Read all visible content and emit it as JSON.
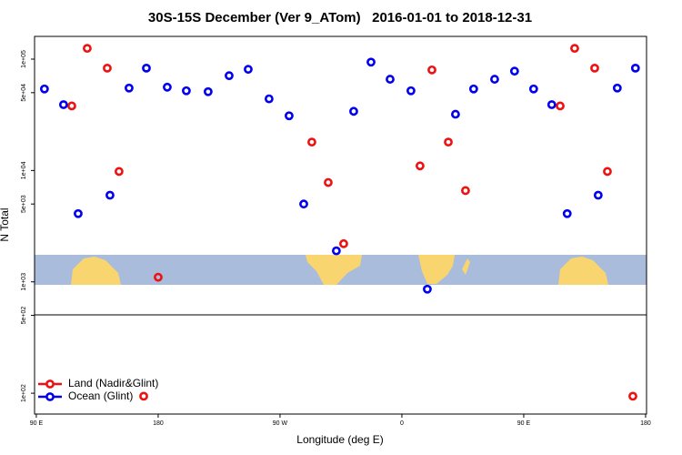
{
  "chart_data": {
    "type": "scatter",
    "title": "30S-15S December (Ver 9_ATom)   2016-01-01 to 2018-12-31",
    "x_label": "Longitude (deg E)",
    "y_label": "N Total",
    "log_y": true,
    "legend": "bottom-left",
    "xlim": [
      88.7,
      540.7
    ],
    "xticks": [
      {
        "value": 90,
        "label": "90 E"
      },
      180,
      {
        "value": 270,
        "label": "90 W"
      },
      0,
      {
        "value": 450,
        "label": "90 E"
      },
      {
        "value": 540,
        "label": "180"
      }
    ],
    "ylim": [
      65,
      160000
    ],
    "yticks": [
      {
        "value": 100,
        "label": "1e+02"
      },
      {
        "value": 500,
        "label": "5e+02"
      },
      {
        "value": 1000,
        "label": "1e+03"
      },
      {
        "value": 5000,
        "label": "5e+03"
      },
      {
        "value": 10000,
        "label": "1e+04"
      },
      {
        "value": 50000,
        "label": "5e+04"
      },
      {
        "value": 100000,
        "label": "1e+05"
      }
    ],
    "series": [
      {
        "name": "Land (Nadir&Glint)",
        "color": "#ee1111",
        "x": [
          127.6,
          116.2,
          142.4,
          151.1,
          169.3,
          180,
          293.5,
          305.6,
          317,
          373.4,
          382.2,
          394.3,
          407,
          476.9,
          487.6,
          502.4,
          511.8,
          530.6
        ],
        "values": [
          125000,
          38000,
          83000,
          9800,
          94,
          1100,
          18000,
          7800,
          2200,
          11000,
          80000,
          18000,
          6600,
          38000,
          125000,
          83000,
          9800,
          94
        ]
      },
      {
        "name": "Ocean (Glint)",
        "color": "#0000ee",
        "x": [
          96,
          110.1,
          120.9,
          144.4,
          158.5,
          171.3,
          186.7,
          200.8,
          216.9,
          232.4,
          246.5,
          261.9,
          276.7,
          287.5,
          311.6,
          324.4,
          337.2,
          351.3,
          366.7,
          378.8,
          399.6,
          413,
          428.5,
          443.2,
          457.3,
          470.7,
          482.1,
          505,
          519.1,
          532.5
        ],
        "values": [
          54000,
          39000,
          4100,
          6000,
          55000,
          83000,
          56000,
          52000,
          51000,
          71000,
          81000,
          44000,
          31000,
          5000,
          1900,
          34000,
          94000,
          66000,
          52000,
          860,
          32000,
          54000,
          66000,
          78000,
          54000,
          39000,
          4100,
          6000,
          55000,
          83000
        ]
      }
    ]
  }
}
